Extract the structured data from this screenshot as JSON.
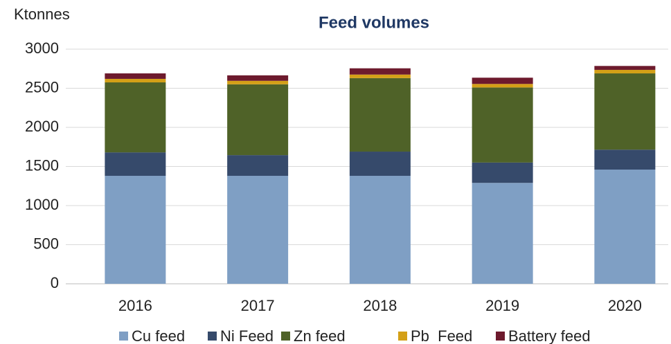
{
  "chart_data": {
    "type": "stacked_bar",
    "title": "Feed volumes",
    "y_label": "Ktonnes",
    "categories": [
      "2016",
      "2017",
      "2018",
      "2019",
      "2020"
    ],
    "series": [
      {
        "name": "Cu feed",
        "color": "#7f9fc4",
        "values": [
          1380,
          1380,
          1380,
          1290,
          1460
        ]
      },
      {
        "name": "Ni Feed",
        "color": "#364a6b",
        "values": [
          300,
          265,
          310,
          260,
          255
        ]
      },
      {
        "name": "Zn feed",
        "color": "#4f6228",
        "values": [
          895,
          905,
          940,
          960,
          975
        ]
      },
      {
        "name": "Pb  Feed",
        "color": "#d4a017",
        "values": [
          45,
          45,
          45,
          45,
          45
        ]
      },
      {
        "name": "Battery feed",
        "color": "#6d1a2d",
        "values": [
          70,
          70,
          80,
          80,
          50
        ]
      }
    ],
    "ylim": [
      0,
      3000
    ],
    "yticks": [
      0,
      500,
      1000,
      1500,
      2000,
      2500,
      3000
    ],
    "grid": true,
    "legend": "bottom"
  }
}
